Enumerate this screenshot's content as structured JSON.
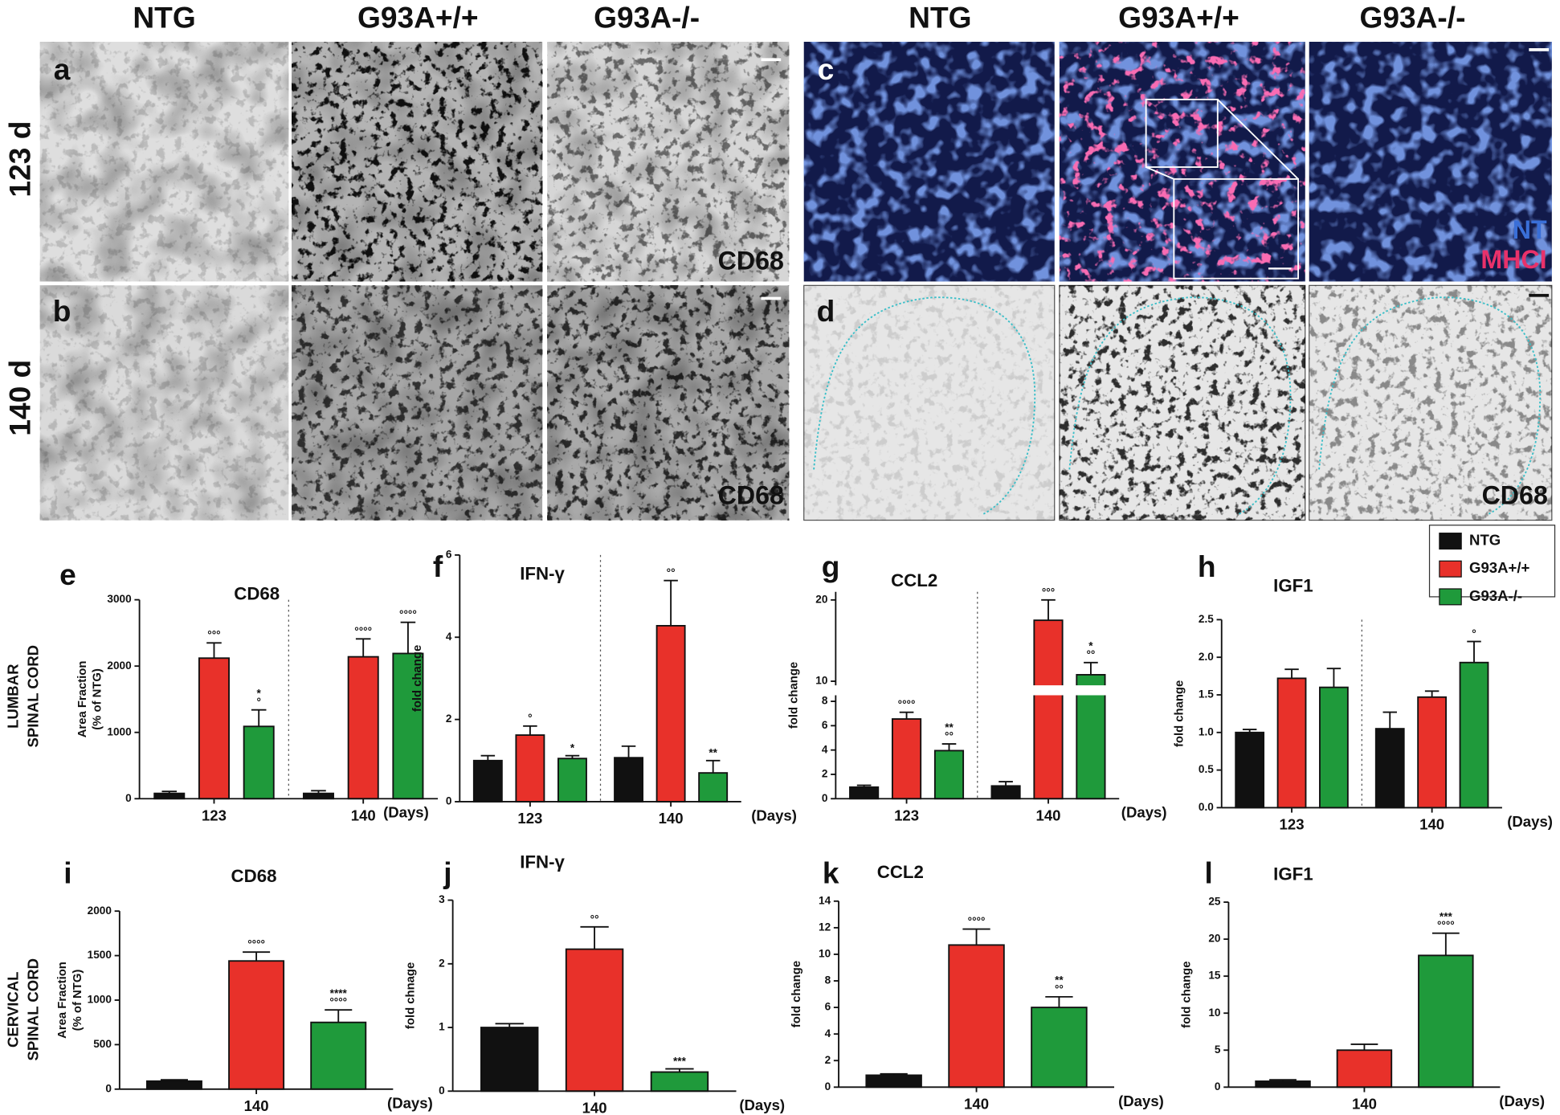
{
  "figure": {
    "column_headers": [
      "NTG",
      "G93A+/+",
      "G93A-/-",
      "NTG",
      "G93A+/+",
      "G93A-/-"
    ],
    "row_labels": [
      "123 d",
      "140 d"
    ],
    "panels": [
      {
        "letter": "a",
        "label": "CD68"
      },
      {
        "letter": "b",
        "label": "CD68"
      },
      {
        "letter": "c",
        "labels": [
          "NT",
          "MHCI"
        ]
      },
      {
        "letter": "d",
        "label": "CD68"
      }
    ],
    "region_labels": [
      [
        "LUMBAR",
        "SPINAL CORD"
      ],
      [
        "CERVICAL",
        "SPINAL CORD"
      ]
    ]
  },
  "chart_data": [
    {
      "type": "bar",
      "panel": "e",
      "title": "CD68",
      "ylabel": [
        "Area Fraction",
        "(% of NTG)"
      ],
      "xlabel": "(Days)",
      "categories": [
        "123",
        "140"
      ],
      "ylim": [
        0,
        3000
      ],
      "yticks": [
        0,
        1000,
        2000,
        3000
      ],
      "series": [
        {
          "name": "NTG",
          "color": "#111111",
          "values": [
            80,
            80
          ],
          "errors": [
            30,
            40
          ],
          "annotations": [
            null,
            null
          ]
        },
        {
          "name": "G93A+/+",
          "color": "#e8312a",
          "values": [
            2120,
            2140
          ],
          "errors": [
            230,
            270
          ],
          "annotations": [
            [
              "°°°"
            ],
            [
              "°°°°"
            ]
          ]
        },
        {
          "name": "G93A-/-",
          "color": "#1f9a3b",
          "values": [
            1090,
            2190
          ],
          "errors": [
            250,
            470
          ],
          "annotations": [
            [
              "*",
              "°"
            ],
            [
              "°°°°"
            ]
          ]
        }
      ]
    },
    {
      "type": "bar",
      "panel": "f",
      "title": "IFN-γ",
      "ylabel": [
        "fold change"
      ],
      "xlabel": "(Days)",
      "categories": [
        "123",
        "140"
      ],
      "ylim": [
        0,
        6
      ],
      "yticks": [
        0,
        2,
        4,
        6
      ],
      "series": [
        {
          "name": "NTG",
          "color": "#111111",
          "values": [
            1.0,
            1.07
          ],
          "errors": [
            0.12,
            0.28
          ],
          "annotations": [
            null,
            null
          ]
        },
        {
          "name": "G93A+/+",
          "color": "#e8312a",
          "values": [
            1.62,
            4.28
          ],
          "errors": [
            0.22,
            1.1
          ],
          "annotations": [
            [
              "°"
            ],
            [
              "°°"
            ]
          ]
        },
        {
          "name": "G93A-/-",
          "color": "#1f9a3b",
          "values": [
            1.05,
            0.7
          ],
          "errors": [
            0.07,
            0.3
          ],
          "annotations": [
            [
              "*"
            ],
            [
              "**"
            ]
          ]
        }
      ]
    },
    {
      "type": "bar",
      "panel": "g",
      "title": "CCL2",
      "ylabel": [
        "fold change"
      ],
      "xlabel": "(Days)",
      "categories": [
        "123",
        "140"
      ],
      "ylim": [
        0,
        21
      ],
      "axis_break": [
        8.5,
        9.5
      ],
      "yticks": [
        0,
        2,
        4,
        6,
        8,
        10,
        20
      ],
      "series": [
        {
          "name": "NTG",
          "color": "#111111",
          "values": [
            0.95,
            1.05
          ],
          "errors": [
            0.15,
            0.35
          ],
          "annotations": [
            null,
            null
          ]
        },
        {
          "name": "G93A+/+",
          "color": "#e8312a",
          "values": [
            6.55,
            17.5
          ],
          "errors": [
            0.55,
            2.5
          ],
          "annotations": [
            [
              "°°°°"
            ],
            [
              "°°°"
            ]
          ]
        },
        {
          "name": "G93A-/-",
          "color": "#1f9a3b",
          "values": [
            3.95,
            10.8
          ],
          "errors": [
            0.55,
            1.5
          ],
          "annotations": [
            [
              "**",
              "°°"
            ],
            [
              "*",
              "°°"
            ]
          ]
        }
      ]
    },
    {
      "type": "bar",
      "panel": "h",
      "title": "IGF1",
      "ylabel": [
        "fold change"
      ],
      "xlabel": "(Days)",
      "categories": [
        "123",
        "140"
      ],
      "ylim": [
        0,
        2.5
      ],
      "yticks": [
        {
          "value": 0,
          "label": "0.0"
        },
        0.5,
        {
          "value": 1,
          "label": "1.0"
        },
        1.5,
        {
          "value": 2,
          "label": "2.0"
        },
        2.5
      ],
      "series": [
        {
          "name": "NTG",
          "color": "#111111",
          "values": [
            1.0,
            1.05
          ],
          "errors": [
            0.04,
            0.22
          ],
          "annotations": [
            null,
            null
          ]
        },
        {
          "name": "G93A+/+",
          "color": "#e8312a",
          "values": [
            1.72,
            1.47
          ],
          "errors": [
            0.12,
            0.08
          ],
          "annotations": [
            null,
            null
          ]
        },
        {
          "name": "G93A-/-",
          "color": "#1f9a3b",
          "values": [
            1.6,
            1.93
          ],
          "errors": [
            0.25,
            0.28
          ],
          "annotations": [
            null,
            [
              "°"
            ]
          ]
        }
      ]
    },
    {
      "type": "bar",
      "panel": "i",
      "title": "CD68",
      "ylabel": [
        "Area Fraction",
        "(% of NTG)"
      ],
      "xlabel": "(Days)",
      "categories": [
        "140"
      ],
      "ylim": [
        0,
        2000
      ],
      "yticks": [
        0,
        500,
        1000,
        1500,
        2000
      ],
      "series": [
        {
          "name": "NTG",
          "color": "#111111",
          "values": [
            90
          ],
          "errors": [
            15
          ],
          "annotations": [
            null
          ]
        },
        {
          "name": "G93A+/+",
          "color": "#e8312a",
          "values": [
            1440
          ],
          "errors": [
            100
          ],
          "annotations": [
            [
              "°°°°"
            ]
          ]
        },
        {
          "name": "G93A-/-",
          "color": "#1f9a3b",
          "values": [
            750
          ],
          "errors": [
            140
          ],
          "annotations": [
            [
              "****",
              "°°°°"
            ]
          ]
        }
      ]
    },
    {
      "type": "bar",
      "panel": "j",
      "title": "IFN-γ",
      "ylabel": [
        "fold chnage"
      ],
      "xlabel": "(Days)",
      "categories": [
        "140"
      ],
      "ylim": [
        0,
        3
      ],
      "yticks": [
        0,
        1,
        2,
        3
      ],
      "series": [
        {
          "name": "NTG",
          "color": "#111111",
          "values": [
            1.0
          ],
          "errors": [
            0.06
          ],
          "annotations": [
            null
          ]
        },
        {
          "name": "G93A+/+",
          "color": "#e8312a",
          "values": [
            2.23
          ],
          "errors": [
            0.35
          ],
          "annotations": [
            [
              "°°"
            ]
          ]
        },
        {
          "name": "G93A-/-",
          "color": "#1f9a3b",
          "values": [
            0.3
          ],
          "errors": [
            0.05
          ],
          "annotations": [
            [
              "***"
            ]
          ]
        }
      ]
    },
    {
      "type": "bar",
      "panel": "k",
      "title": "CCL2",
      "ylabel": [
        "fold change"
      ],
      "xlabel": "(Days)",
      "categories": [
        "140"
      ],
      "ylim": [
        0,
        14
      ],
      "yticks": [
        0,
        2,
        4,
        6,
        8,
        10,
        12,
        14
      ],
      "series": [
        {
          "name": "NTG",
          "color": "#111111",
          "values": [
            0.9
          ],
          "errors": [
            0.1
          ],
          "annotations": [
            null
          ]
        },
        {
          "name": "G93A+/+",
          "color": "#e8312a",
          "values": [
            10.7
          ],
          "errors": [
            1.2
          ],
          "annotations": [
            [
              "°°°°"
            ]
          ]
        },
        {
          "name": "G93A-/-",
          "color": "#1f9a3b",
          "values": [
            6.0
          ],
          "errors": [
            0.8
          ],
          "annotations": [
            [
              "**",
              "°°"
            ]
          ]
        }
      ]
    },
    {
      "type": "bar",
      "panel": "l",
      "title": "IGF1",
      "ylabel": [
        "fold change"
      ],
      "xlabel": "(Days)",
      "categories": [
        "140"
      ],
      "ylim": [
        0,
        25
      ],
      "yticks": [
        0,
        5,
        10,
        15,
        20,
        25
      ],
      "series": [
        {
          "name": "NTG",
          "color": "#111111",
          "values": [
            0.8
          ],
          "errors": [
            0.2
          ],
          "annotations": [
            null
          ]
        },
        {
          "name": "G93A+/+",
          "color": "#e8312a",
          "values": [
            5.0
          ],
          "errors": [
            0.8
          ],
          "annotations": [
            null
          ]
        },
        {
          "name": "G93A-/-",
          "color": "#1f9a3b",
          "values": [
            17.8
          ],
          "errors": [
            3.0
          ],
          "annotations": [
            [
              "***",
              "°°°°"
            ]
          ]
        }
      ]
    }
  ]
}
